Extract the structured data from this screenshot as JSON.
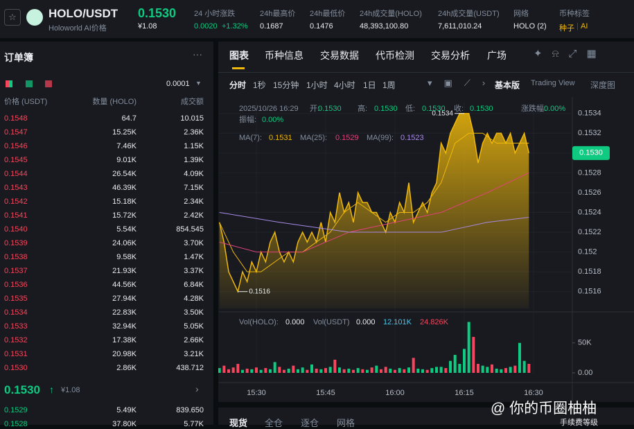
{
  "header": {
    "symbol": "HOLO/USDT",
    "subtitle": "Holoworld AI价格",
    "price": "0.1530",
    "price_cny": "¥1.08",
    "stats": [
      {
        "label": "24 小时涨跌",
        "value": "0.0020",
        "extra": "+1.32%"
      },
      {
        "label": "24h最高价",
        "value": "0.1687"
      },
      {
        "label": "24h最低价",
        "value": "0.1476"
      },
      {
        "label": "24h成交量(HOLO)",
        "value": "48,393,100.80"
      },
      {
        "label": "24h成交量(USDT)",
        "value": "7,611,010.24"
      },
      {
        "label": "网络",
        "value": "HOLO (2)"
      }
    ],
    "tags_label": "币种标签",
    "tags": [
      "种子",
      "AI"
    ]
  },
  "order_book": {
    "title": "订单簿",
    "precision": "0.0001",
    "headers": [
      "价格 (USDT)",
      "数量 (HOLO)",
      "成交额"
    ],
    "asks": [
      [
        "0.1548",
        "64.7",
        "10.015"
      ],
      [
        "0.1547",
        "15.25K",
        "2.36K"
      ],
      [
        "0.1546",
        "7.46K",
        "1.15K"
      ],
      [
        "0.1545",
        "9.01K",
        "1.39K"
      ],
      [
        "0.1544",
        "26.54K",
        "4.09K"
      ],
      [
        "0.1543",
        "46.39K",
        "7.15K"
      ],
      [
        "0.1542",
        "15.18K",
        "2.34K"
      ],
      [
        "0.1541",
        "15.72K",
        "2.42K"
      ],
      [
        "0.1540",
        "5.54K",
        "854.545"
      ],
      [
        "0.1539",
        "24.06K",
        "3.70K"
      ],
      [
        "0.1538",
        "9.58K",
        "1.47K"
      ],
      [
        "0.1537",
        "21.93K",
        "3.37K"
      ],
      [
        "0.1536",
        "44.56K",
        "6.84K"
      ],
      [
        "0.1535",
        "27.94K",
        "4.28K"
      ],
      [
        "0.1534",
        "22.83K",
        "3.50K"
      ],
      [
        "0.1533",
        "32.94K",
        "5.05K"
      ],
      [
        "0.1532",
        "17.38K",
        "2.66K"
      ],
      [
        "0.1531",
        "20.98K",
        "3.21K"
      ],
      [
        "0.1530",
        "2.86K",
        "438.712"
      ]
    ],
    "mid_price": "0.1530",
    "mid_cny": "¥1.08",
    "bids": [
      [
        "0.1529",
        "5.49K",
        "839.650"
      ],
      [
        "0.1528",
        "37.80K",
        "5.77K"
      ]
    ]
  },
  "tabs": [
    "图表",
    "币种信息",
    "交易数据",
    "代币检测",
    "交易分析",
    "广场"
  ],
  "intervals": [
    "分时",
    "1秒",
    "15分钟",
    "1小时",
    "4小时",
    "1日",
    "1周"
  ],
  "views": [
    "基本版",
    "Trading View",
    "深度图"
  ],
  "info": {
    "time": "2025/10/26 16:29",
    "fields": [
      {
        "label": "开:",
        "value": "0.1530"
      },
      {
        "label": "高:",
        "value": "0.1530"
      },
      {
        "label": "低:",
        "value": "0.1530"
      },
      {
        "label": "收:",
        "value": "0.1530"
      },
      {
        "label": "涨跌幅:",
        "value": "0.00%"
      },
      {
        "label": "振幅:",
        "value": "0.00%"
      }
    ]
  },
  "ma_labels": [
    {
      "label": "MA(7):",
      "value": "0.1531"
    },
    {
      "label": "MA(25):",
      "value": "0.1529"
    },
    {
      "label": "MA(99):",
      "value": "0.1523"
    }
  ],
  "vol_labels": [
    {
      "label": "Vol(HOLO):",
      "value": "0.000"
    },
    {
      "label": "Vol(USDT)",
      "value": "0.000"
    },
    {
      "label": "",
      "value": "12.101K"
    },
    {
      "label": "",
      "value": "24.826K"
    }
  ],
  "chart_data": {
    "type": "line",
    "x": [
      22,
      23,
      24,
      25,
      26,
      27,
      28,
      29,
      30,
      31,
      32,
      33,
      34,
      35,
      36,
      37,
      38,
      39,
      40,
      41,
      42,
      43,
      44,
      45,
      46,
      47,
      48,
      49,
      50,
      51,
      52,
      53,
      54,
      55,
      56,
      57,
      58,
      59,
      60,
      61,
      62,
      63,
      64,
      65,
      66,
      67,
      68,
      69,
      70,
      71,
      72,
      73,
      74,
      75,
      76,
      77,
      78,
      79,
      80,
      81,
      82,
      83,
      84,
      85,
      86,
      87,
      88,
      89
    ],
    "series": [
      {
        "name": "price",
        "color": "#f0b90b",
        "values": [
          0.1523,
          0.1521,
          0.1518,
          0.1517,
          0.1516,
          0.1518,
          0.1517,
          0.1519,
          0.1518,
          0.152,
          0.1519,
          0.1521,
          0.1522,
          0.152,
          0.1519,
          0.152,
          0.1519,
          0.1521,
          0.1522,
          0.1521,
          0.1522,
          0.1521,
          0.1523,
          0.1521,
          0.1524,
          0.1523,
          0.1526,
          0.1524,
          0.1525,
          0.1523,
          0.1526,
          0.1525,
          0.1525,
          0.1524,
          0.1524,
          0.1523,
          0.1522,
          0.1524,
          0.1523,
          0.1525,
          0.1524,
          0.1527,
          0.1523,
          0.1524,
          0.1525,
          0.1524,
          0.1526,
          0.1527,
          0.1531,
          0.153,
          0.1532,
          0.1533,
          0.1534,
          0.1534,
          0.1534,
          0.1532,
          0.1529,
          0.1531,
          0.1532,
          0.1531,
          0.1532,
          0.1532,
          0.1531,
          0.1532,
          0.153,
          0.1531,
          0.1532,
          0.153
        ]
      }
    ],
    "ma": [
      {
        "name": "MA(7)",
        "color": "#f0b90b",
        "x": [
          22,
          25,
          28,
          31,
          34,
          37,
          40,
          43,
          46,
          49,
          52,
          55,
          58,
          61,
          64,
          67,
          70,
          73,
          76,
          79,
          82,
          85,
          89
        ],
        "values": [
          0.1523,
          0.152,
          0.1518,
          0.1518,
          0.1519,
          0.152,
          0.152,
          0.1521,
          0.1522,
          0.1524,
          0.1525,
          0.1524,
          0.1523,
          0.1524,
          0.1524,
          0.1525,
          0.1527,
          0.1531,
          0.1532,
          0.1532,
          0.1531,
          0.1531,
          0.1531
        ]
      },
      {
        "name": "MA(25)",
        "color": "#e0427a",
        "x": [
          22,
          30,
          40,
          50,
          60,
          70,
          80,
          89
        ],
        "values": [
          0.1521,
          0.152,
          0.152,
          0.1522,
          0.1523,
          0.1524,
          0.1526,
          0.1528
        ]
      },
      {
        "name": "MA(99)",
        "color": "#a88ae6",
        "x": [
          22,
          35,
          50,
          60,
          70,
          80,
          89
        ],
        "values": [
          0.1524,
          0.1523,
          0.1522,
          0.1522,
          0.1522,
          0.1523,
          0.15235
        ]
      }
    ],
    "volume": [
      8000,
      12000,
      6000,
      9000,
      15000,
      5000,
      7000,
      6000,
      9000,
      5000,
      8000,
      6000,
      18000,
      10000,
      5000,
      7000,
      12000,
      6000,
      9000,
      5000,
      14000,
      7000,
      6000,
      8000,
      10000,
      22000,
      9000,
      6000,
      7000,
      5000,
      8000,
      6000,
      5000,
      9000,
      12000,
      6000,
      10000,
      7000,
      5000,
      8000,
      6000,
      9000,
      25000,
      7000,
      6000,
      5000,
      8000,
      10000,
      10000,
      8000,
      20000,
      30000,
      15000,
      40000,
      85000,
      60000,
      15000,
      12000,
      10000,
      14000,
      7000,
      6000,
      8000,
      10000,
      12000,
      50000,
      20000,
      15000
    ],
    "xlim": [
      21.9,
      99.0
    ],
    "ylim": [
      0.15143,
      0.15351
    ],
    "yticks": [
      0.1516,
      0.1518,
      0.152,
      0.1522,
      0.1524,
      0.1526,
      0.1528,
      0.153,
      0.1532,
      0.1534
    ],
    "xticks": [
      {
        "value": 30,
        "label": "15:30"
      },
      {
        "value": 45,
        "label": "15:45"
      },
      {
        "value": 60,
        "label": "16:00"
      },
      {
        "value": 75,
        "label": "16:15"
      },
      {
        "value": 90,
        "label": "16:30"
      }
    ],
    "vlim": [
      0,
      96000
    ],
    "vticks": [
      {
        "value": 0,
        "label": "0.00"
      },
      {
        "value": 50000,
        "label": "50K"
      }
    ],
    "up_color": "#0ecb81",
    "down_color": "#f6465d",
    "grid": true,
    "annotations": [
      {
        "x": 75,
        "y": 0.1534,
        "label": "0.1534"
      },
      {
        "x": 26,
        "y": 0.1516,
        "label": "0.1516"
      }
    ],
    "last_price": {
      "value": 0.153,
      "label": "0.1530"
    }
  },
  "bottom": {
    "tabs": [
      "现货",
      "全仓",
      "逐仓",
      "网格"
    ],
    "fee": "手续费等级",
    "watermark": "@ 你的币圈柚柚"
  }
}
